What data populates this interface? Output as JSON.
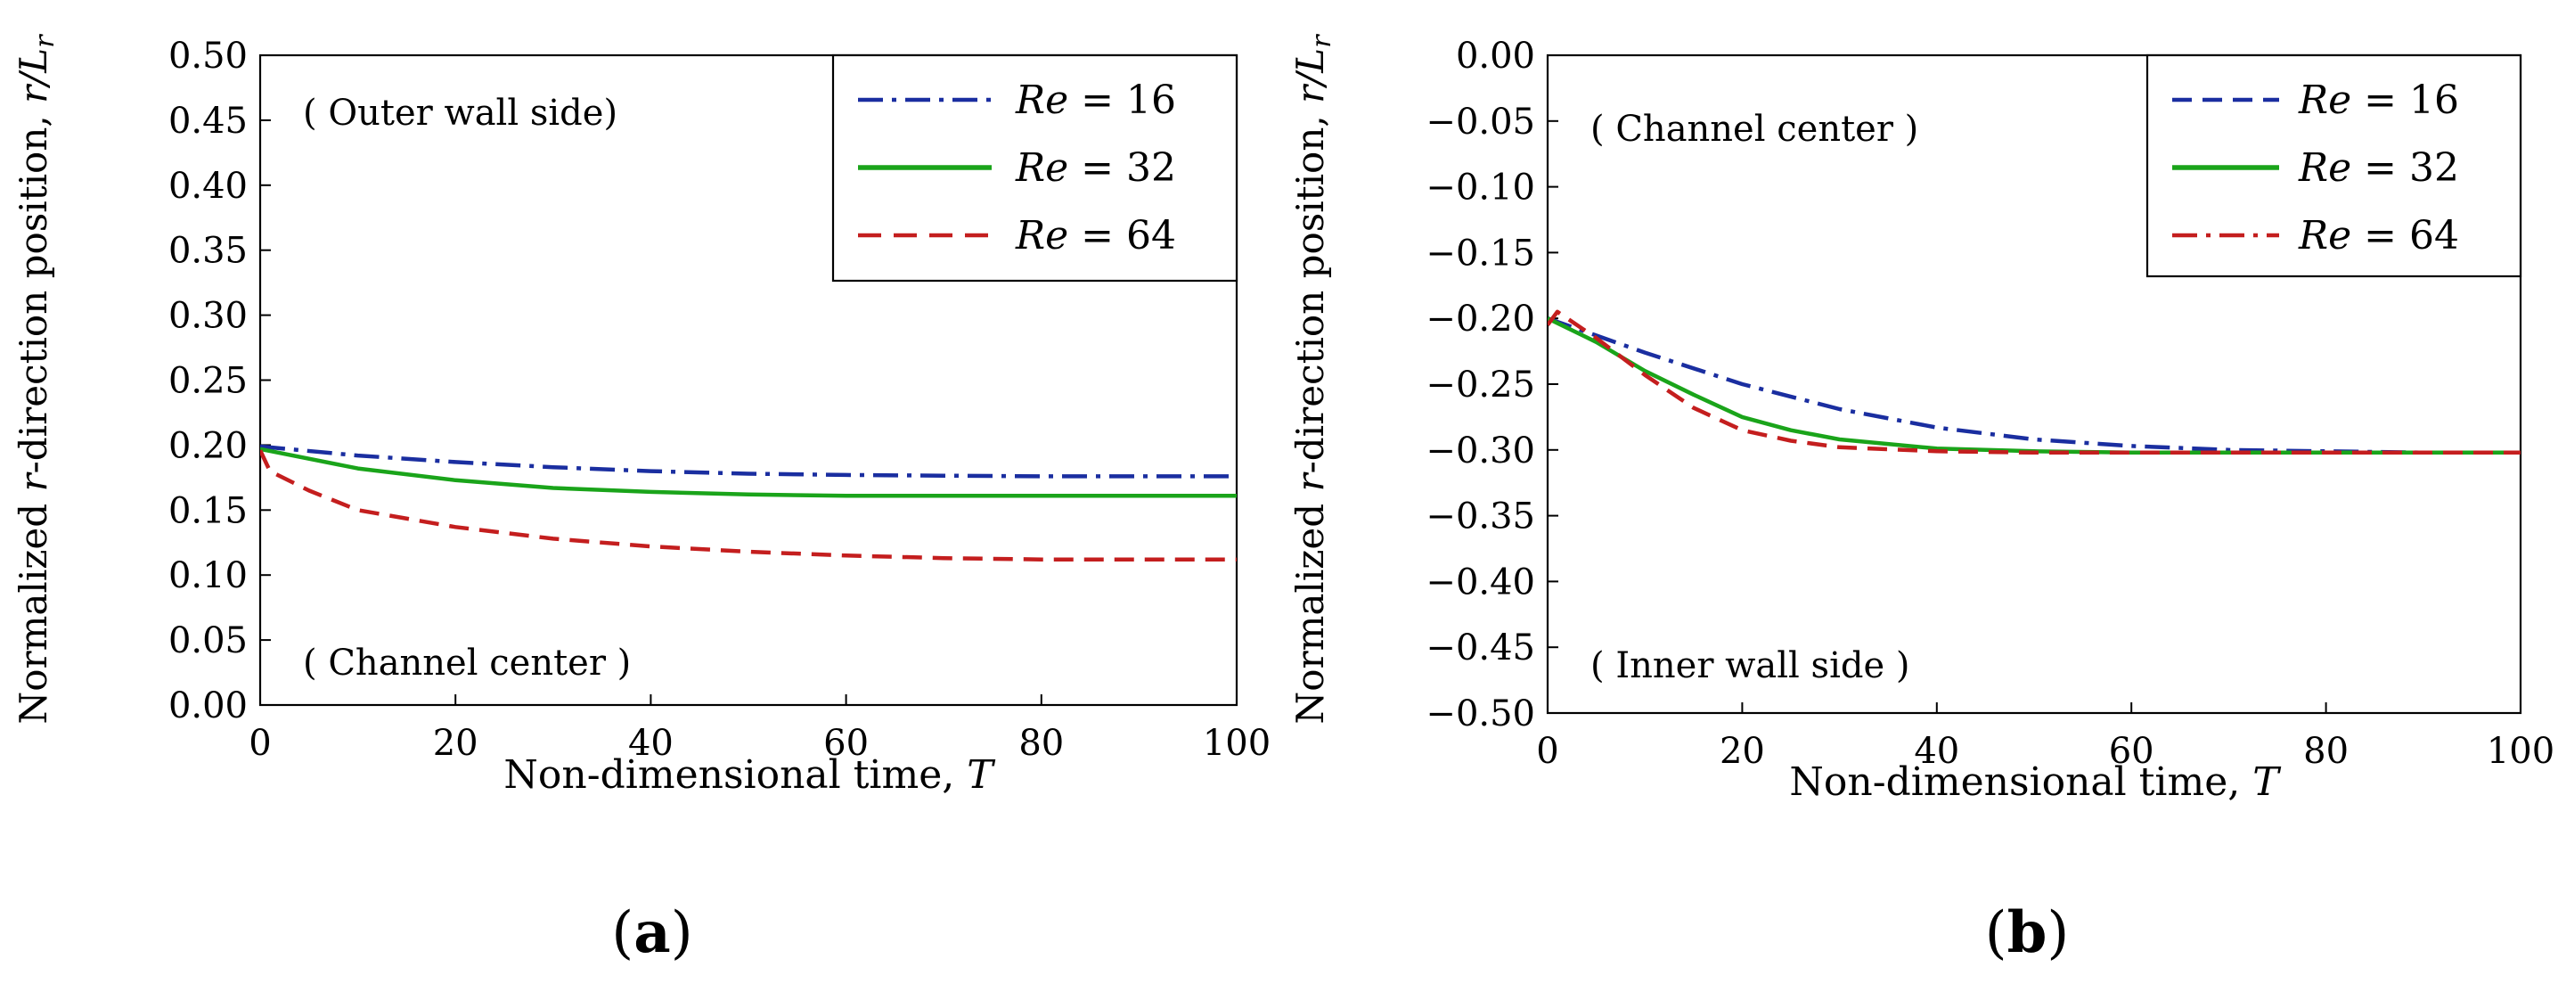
{
  "figure": {
    "panel_labels": [
      "(a)",
      "(b)"
    ]
  },
  "colors": {
    "re16": "#1a2ea0",
    "re32": "#1aa41a",
    "re64": "#c41e1e",
    "axis": "#000000"
  },
  "chart_data": [
    {
      "type": "line",
      "panel": "(a)",
      "xlabel_prefix": "Non-dimensional time, ",
      "xlabel_var": "T",
      "ylabel_prefix": "Normalized ",
      "ylabel_var": "r",
      "ylabel_mid": "-direction position, ",
      "ylabel_ratio": "r/L",
      "ylabel_sub": "r",
      "xlim": [
        0,
        100
      ],
      "ylim": [
        0,
        0.5
      ],
      "xticks": [
        0,
        20,
        40,
        60,
        80,
        100
      ],
      "xtick_labels": [
        "0",
        "20",
        "40",
        "60",
        "80",
        "100"
      ],
      "yticks": [
        0,
        0.05,
        0.1,
        0.15,
        0.2,
        0.25,
        0.3,
        0.35,
        0.4,
        0.45,
        0.5
      ],
      "ytick_labels": [
        "0.00",
        "0.05",
        "0.10",
        "0.15",
        "0.20",
        "0.25",
        "0.30",
        "0.35",
        "0.40",
        "0.45",
        "0.50"
      ],
      "annotations": [
        "( Outer wall side)",
        "( Channel center )"
      ],
      "legend_position": "top-right",
      "series": [
        {
          "name": "Re = 16",
          "label_var": "Re",
          "label_value": "= 16",
          "color": "#1a2ea0",
          "style": "dashdot",
          "x": [
            0,
            10,
            20,
            30,
            40,
            50,
            60,
            70,
            80,
            90,
            100
          ],
          "y": [
            0.199,
            0.192,
            0.187,
            0.183,
            0.18,
            0.178,
            0.177,
            0.1765,
            0.176,
            0.176,
            0.176
          ]
        },
        {
          "name": "Re = 32",
          "label_var": "Re",
          "label_value": "= 32",
          "color": "#1aa41a",
          "style": "solid",
          "x": [
            0,
            10,
            20,
            30,
            40,
            50,
            60,
            70,
            80,
            90,
            100
          ],
          "y": [
            0.197,
            0.182,
            0.173,
            0.167,
            0.164,
            0.162,
            0.161,
            0.161,
            0.161,
            0.161,
            0.161
          ]
        },
        {
          "name": "Re = 64",
          "label_var": "Re",
          "label_value": "= 64",
          "color": "#c41e1e",
          "style": "dashed",
          "x": [
            0,
            1,
            5,
            10,
            20,
            30,
            40,
            50,
            60,
            70,
            80,
            90,
            100
          ],
          "y": [
            0.196,
            0.18,
            0.165,
            0.15,
            0.137,
            0.128,
            0.122,
            0.118,
            0.115,
            0.113,
            0.112,
            0.112,
            0.112
          ]
        }
      ]
    },
    {
      "type": "line",
      "panel": "(b)",
      "xlabel_prefix": "Non-dimensional time, ",
      "xlabel_var": "T",
      "ylabel_prefix": "Normalized ",
      "ylabel_var": "r",
      "ylabel_mid": "-direction position, ",
      "ylabel_ratio": "r/L",
      "ylabel_sub": "r",
      "xlim": [
        0,
        100
      ],
      "ylim": [
        -0.5,
        0
      ],
      "xticks": [
        0,
        20,
        40,
        60,
        80,
        100
      ],
      "xtick_labels": [
        "0",
        "20",
        "40",
        "60",
        "80",
        "100"
      ],
      "yticks": [
        0,
        -0.05,
        -0.1,
        -0.15,
        -0.2,
        -0.25,
        -0.3,
        -0.35,
        -0.4,
        -0.45,
        -0.5
      ],
      "ytick_labels": [
        "0.00",
        "−0.05",
        "−0.10",
        "−0.15",
        "−0.20",
        "−0.25",
        "−0.30",
        "−0.35",
        "−0.40",
        "−0.45",
        "−0.50"
      ],
      "annotations": [
        "( Channel center )",
        "( Inner wall side )"
      ],
      "legend_position": "top-right",
      "series": [
        {
          "name": "Re = 16",
          "label_var": "Re",
          "label_value": "= 16",
          "color": "#1a2ea0",
          "style": "dashdot",
          "legend_style": "dashed",
          "x": [
            0,
            5,
            10,
            20,
            30,
            40,
            50,
            60,
            70,
            80,
            90,
            100
          ],
          "y": [
            -0.2,
            -0.213,
            -0.226,
            -0.25,
            -0.269,
            -0.283,
            -0.292,
            -0.297,
            -0.3,
            -0.301,
            -0.302,
            -0.302
          ]
        },
        {
          "name": "Re = 32",
          "label_var": "Re",
          "label_value": "= 32",
          "color": "#1aa41a",
          "style": "solid",
          "x": [
            0,
            5,
            10,
            15,
            20,
            25,
            30,
            40,
            50,
            60,
            80,
            100
          ],
          "y": [
            -0.2,
            -0.218,
            -0.24,
            -0.258,
            -0.275,
            -0.285,
            -0.292,
            -0.299,
            -0.301,
            -0.302,
            -0.302,
            -0.302
          ]
        },
        {
          "name": "Re = 64",
          "label_var": "Re",
          "label_value": "= 64",
          "color": "#c41e1e",
          "style": "dashed",
          "legend_style": "dashdot",
          "x": [
            0,
            1,
            5,
            10,
            15,
            20,
            25,
            30,
            40,
            50,
            60,
            80,
            100
          ],
          "y": [
            -0.205,
            -0.195,
            -0.215,
            -0.243,
            -0.268,
            -0.285,
            -0.293,
            -0.298,
            -0.301,
            -0.302,
            -0.302,
            -0.302,
            -0.302
          ]
        }
      ]
    }
  ]
}
